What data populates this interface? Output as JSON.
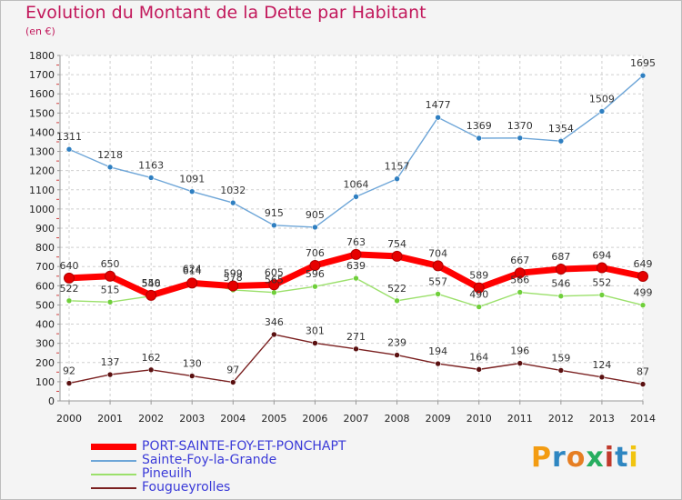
{
  "title": "Evolution du Montant de la Dette par Habitant",
  "unit": "(en €)",
  "brand": {
    "letters": [
      "P",
      "r",
      "o",
      "x",
      "i",
      "t",
      "i"
    ],
    "colors": [
      "#f39c12",
      "#2e86c1",
      "#e67e22",
      "#27ae60",
      "#c0392b",
      "#2e86c1",
      "#f1c40f"
    ]
  },
  "chart_data": {
    "type": "line",
    "title": "Evolution du Montant de la Dette par Habitant",
    "xlabel": "",
    "ylabel": "(en €)",
    "x": [
      "2000",
      "2001",
      "2002",
      "2003",
      "2004",
      "2005",
      "2006",
      "2007",
      "2008",
      "2009",
      "2010",
      "2011",
      "2012",
      "2013",
      "2014"
    ],
    "ylim": [
      0,
      1800
    ],
    "yticks": [
      "0",
      "100",
      "200",
      "300",
      "400",
      "500",
      "600",
      "700",
      "800",
      "900",
      "1000",
      "1100",
      "1200",
      "1300",
      "1400",
      "1500",
      "1600",
      "1700",
      "1800"
    ],
    "grid": true,
    "legend": "bottom-left",
    "series": [
      {
        "name": "Sainte-Foy-la-Grande",
        "color": "#6ea6d8",
        "marker": "#2f7fc1",
        "values": [
          1311,
          1218,
          1163,
          1091,
          1032,
          915,
          905,
          1064,
          1157,
          1477,
          1369,
          1370,
          1354,
          1509,
          1695
        ],
        "labels": [
          "1311",
          "1218",
          "1163",
          "1091",
          "1032",
          "915",
          "905",
          "1064",
          "1157",
          "1477",
          "1369",
          "1370",
          "1354",
          "1509",
          "1695"
        ]
      },
      {
        "name": "Pineuilh",
        "color": "#9be06b",
        "marker": "#6fcf3a",
        "values": [
          522,
          515,
          546,
          624,
          578,
          565,
          596,
          639,
          522,
          557,
          490,
          566,
          546,
          552,
          499
        ],
        "labels": [
          "522",
          "515",
          "546",
          "624",
          "578",
          "565",
          "596",
          "639",
          "522",
          "557",
          "490",
          "566",
          "546",
          "552",
          "499"
        ]
      },
      {
        "name": "Fougueyrolles",
        "color": "#7a2020",
        "marker": "#5a1010",
        "values": [
          92,
          137,
          162,
          130,
          97,
          346,
          301,
          271,
          239,
          194,
          164,
          196,
          159,
          124,
          87
        ],
        "labels": [
          "92",
          "137",
          "162",
          "130",
          "97",
          "346",
          "301",
          "271",
          "239",
          "194",
          "164",
          "196",
          "159",
          "124",
          "87"
        ]
      },
      {
        "name": "PORT-SAINTE-FOY-ET-PONCHAPT",
        "color": "#ff0000",
        "marker": "#e60000",
        "values": [
          640,
          650,
          550,
          614,
          599,
          605,
          706,
          763,
          754,
          704,
          589,
          667,
          687,
          694,
          649
        ],
        "labels": [
          "640",
          "650",
          "550",
          "614",
          "599",
          "605",
          "706",
          "763",
          "754",
          "704",
          "589",
          "667",
          "687",
          "694",
          "649"
        ]
      }
    ],
    "legend_order": [
      "PORT-SAINTE-FOY-ET-PONCHAPT",
      "Sainte-Foy-la-Grande",
      "Pineuilh",
      "Fougueyrolles"
    ]
  }
}
